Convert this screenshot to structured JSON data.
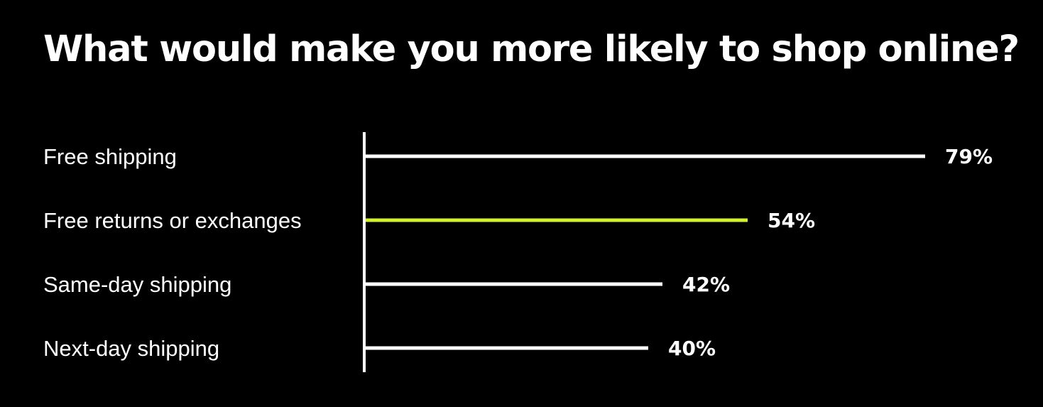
{
  "chart_data": {
    "type": "bar",
    "orientation": "horizontal",
    "title": "What would make you more likely to shop online?",
    "categories": [
      "Free shipping",
      "Free returns or exchanges",
      "Same-day shipping",
      "Next-day shipping"
    ],
    "values": [
      79,
      54,
      42,
      40
    ],
    "value_labels": [
      "79%",
      "54%",
      "42%",
      "40%"
    ],
    "unit": "%",
    "xlim": [
      0,
      100
    ],
    "grid": false,
    "legend": "none",
    "colors": {
      "background": "#000000",
      "text": "#ffffff",
      "bar_default": "#ffffff",
      "bar_highlight": "#d4f12f",
      "axis": "#ffffff"
    },
    "highlight_index": 1
  }
}
